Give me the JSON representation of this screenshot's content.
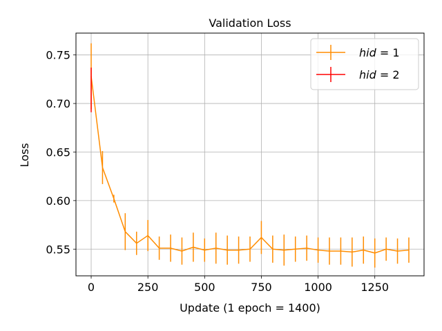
{
  "chart_data": {
    "type": "line",
    "title": "Validation Loss",
    "xlabel": "Update (1 epoch = 1400)",
    "ylabel": "Loss",
    "xlim": [
      -67,
      1467
    ],
    "ylim": [
      0.5225,
      0.7725
    ],
    "xticks": [
      0,
      250,
      500,
      750,
      1000,
      1250
    ],
    "yticks": [
      0.55,
      0.6,
      0.65,
      0.7,
      0.75
    ],
    "grid": true,
    "legend_position": "top-right",
    "series": [
      {
        "name": "hid = 1",
        "legend_main": "hid",
        "legend_rest": " = 1",
        "color": "#ff8c00",
        "x": [
          0,
          50,
          100,
          150,
          200,
          250,
          300,
          350,
          400,
          450,
          500,
          550,
          600,
          650,
          700,
          750,
          800,
          850,
          900,
          950,
          1000,
          1050,
          1100,
          1150,
          1200,
          1250,
          1300,
          1350,
          1400
        ],
        "y": [
          0.728,
          0.634,
          0.602,
          0.568,
          0.556,
          0.564,
          0.551,
          0.551,
          0.548,
          0.552,
          0.549,
          0.551,
          0.549,
          0.549,
          0.55,
          0.562,
          0.55,
          0.549,
          0.55,
          0.551,
          0.549,
          0.548,
          0.548,
          0.547,
          0.549,
          0.546,
          0.55,
          0.548,
          0.549
        ],
        "err": [
          0.034,
          0.017,
          0.004,
          0.019,
          0.012,
          0.016,
          0.012,
          0.014,
          0.014,
          0.015,
          0.012,
          0.016,
          0.015,
          0.014,
          0.013,
          0.017,
          0.014,
          0.016,
          0.013,
          0.013,
          0.013,
          0.014,
          0.014,
          0.015,
          0.014,
          0.015,
          0.012,
          0.013,
          0.013
        ]
      },
      {
        "name": "hid = 2",
        "legend_main": "hid",
        "legend_rest": " = 2",
        "color": "#ff0000",
        "x": [
          0
        ],
        "y": [
          0.714
        ],
        "err": [
          0.023
        ]
      }
    ]
  }
}
